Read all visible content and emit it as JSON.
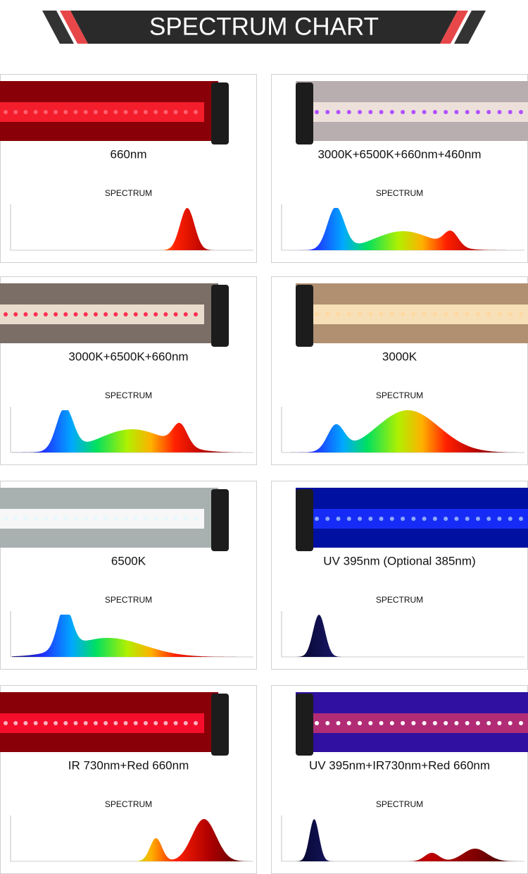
{
  "header": {
    "title": "SPECTRUM CHART"
  },
  "cards": [
    {
      "label": "660nm",
      "spectrum": "SPECTRUM"
    },
    {
      "label": "3000K+6500K+660nm+460nm",
      "spectrum": "SPECTRUM"
    },
    {
      "label": "3000K+6500K+660nm",
      "spectrum": "SPECTRUM"
    },
    {
      "label": "3000K",
      "spectrum": "SPECTRUM"
    },
    {
      "label": "6500K",
      "spectrum": "SPECTRUM"
    },
    {
      "label": "UV 395nm (Optional 385nm)",
      "spectrum": "SPECTRUM"
    },
    {
      "label": "IR 730nm+Red 660nm",
      "spectrum": "SPECTRUM"
    },
    {
      "label": "UV 395nm+IR730nm+Red 660nm",
      "spectrum": "SPECTRUM"
    }
  ]
}
